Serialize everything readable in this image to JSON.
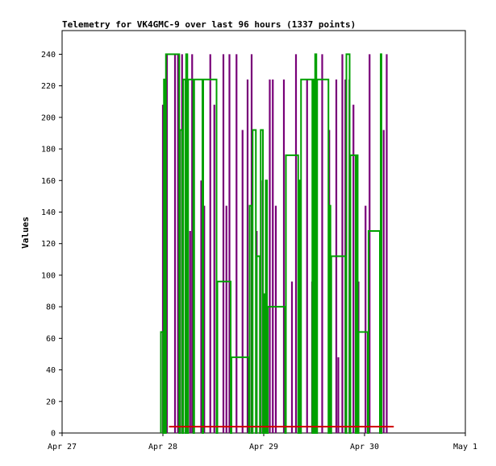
{
  "chart_data": {
    "type": "line",
    "title": "Telemetry for VK4GMC-9 over last 96 hours (1337 points)",
    "ylabel": "Values",
    "xlabel": "",
    "x_axis": "time",
    "xlim": [
      "Apr 27",
      "May 1"
    ],
    "x_ticks": [
      "Apr 27",
      "Apr 28",
      "Apr 29",
      "Apr 30",
      "May 1"
    ],
    "ylim": [
      0,
      255
    ],
    "y_ticks": [
      0,
      20,
      40,
      60,
      80,
      100,
      120,
      140,
      160,
      180,
      200,
      220,
      240
    ],
    "grid": false,
    "legend": "none",
    "series": [
      {
        "color": "#780078",
        "style": "spikes",
        "values_x_days": [
          28.0,
          28.02,
          28.04,
          28.12,
          28.15,
          28.19,
          28.24,
          28.27,
          28.29,
          28.38,
          28.41,
          28.47,
          28.51,
          28.6,
          28.63,
          28.66,
          28.73,
          28.79,
          28.84,
          28.88,
          28.93,
          28.99,
          29.06,
          29.09,
          29.12,
          29.2,
          29.28,
          29.32,
          29.43,
          29.48,
          29.52,
          29.58,
          29.65,
          29.72,
          29.74,
          29.78,
          29.81,
          29.85,
          29.89,
          29.94,
          30.01,
          30.05,
          30.16,
          30.19,
          30.22
        ],
        "values_y": [
          208,
          112,
          240,
          240,
          240,
          240,
          240,
          128,
          240,
          160,
          144,
          240,
          208,
          240,
          144,
          240,
          240,
          192,
          224,
          240,
          128,
          160,
          224,
          224,
          144,
          224,
          96,
          240,
          224,
          96,
          224,
          240,
          192,
          224,
          48,
          240,
          224,
          224,
          208,
          96,
          144,
          240,
          48,
          192,
          240
        ]
      },
      {
        "color": "#00a000",
        "style": "step",
        "values_x_days": [
          27.98,
          28.01,
          28.03,
          28.17,
          28.2,
          28.23,
          28.25,
          28.31,
          28.4,
          28.54,
          28.68,
          28.86,
          28.89,
          28.93,
          28.97,
          29.0,
          29.02,
          29.04,
          29.22,
          29.35,
          29.37,
          29.49,
          29.51,
          29.53,
          29.65,
          29.67,
          29.82,
          29.86,
          29.92,
          29.94,
          30.04,
          30.16
        ],
        "values_y": [
          64,
          224,
          240,
          192,
          224,
          240,
          224,
          224,
          224,
          96,
          48,
          144,
          192,
          112,
          192,
          88,
          160,
          80,
          176,
          160,
          224,
          224,
          240,
          224,
          144,
          112,
          240,
          176,
          176,
          64,
          128,
          240
        ]
      },
      {
        "color": "#d00000",
        "style": "flat",
        "values_x_days": [
          28.06,
          30.29
        ],
        "values_y": [
          4,
          4
        ]
      }
    ]
  }
}
